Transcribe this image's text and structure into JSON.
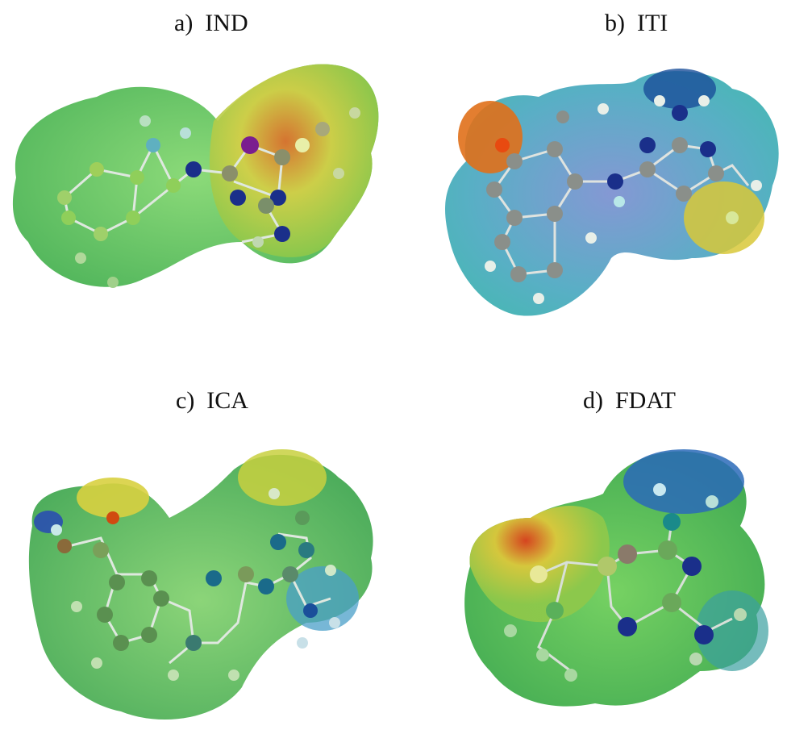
{
  "panels": [
    {
      "label": "a)  IND"
    },
    {
      "label": "b)  ITI"
    },
    {
      "label": "c)  ICA"
    },
    {
      "label": "d)  FDAT"
    }
  ],
  "colors": {
    "green_surface": "#5fc65a",
    "blue_surface": "#3a8fc9",
    "yellow_surface": "#d8d84a",
    "red_surface": "#e0502a",
    "nitrogen": "#1a2f8a",
    "carbon_gray": "#8a8f8a",
    "hydrogen": "#e8efe8",
    "iodine": "#7a1e8f",
    "oxygen": "#e84a10"
  }
}
